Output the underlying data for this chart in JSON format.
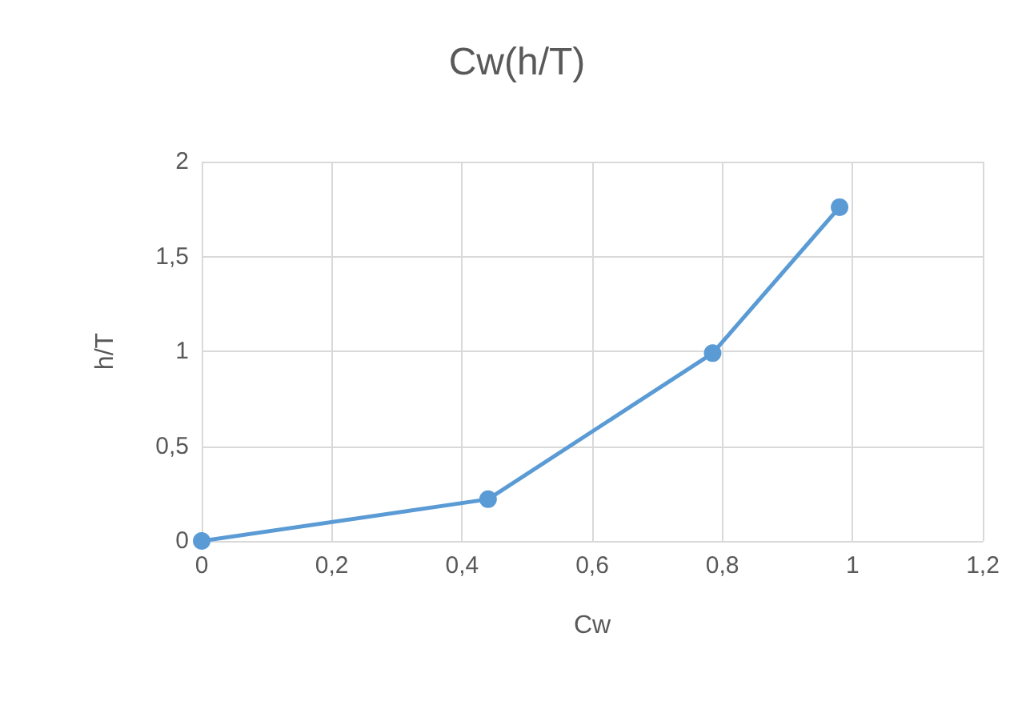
{
  "chart_data": {
    "type": "line",
    "title": "Cw(h/T)",
    "xlabel": "Cw",
    "ylabel": "h/T",
    "x": [
      0,
      0.44,
      0.785,
      0.98
    ],
    "series": [
      {
        "color": "#5b9bd5",
        "values": [
          0,
          0.22,
          0.99,
          1.76
        ]
      }
    ],
    "xlim": [
      0,
      1.2
    ],
    "xticks": [
      0,
      {
        "value": 0.2,
        "label": "0,2"
      },
      {
        "value": 0.4,
        "label": "0,4"
      },
      {
        "value": 0.6,
        "label": "0,6"
      },
      {
        "value": 0.8,
        "label": "0,8"
      },
      1,
      {
        "value": 1.2,
        "label": "1,2"
      }
    ],
    "ylim": [
      0,
      2
    ],
    "yticks": [
      0,
      {
        "value": 0.5,
        "label": "0,5"
      },
      1,
      {
        "value": 1.5,
        "label": "1,5"
      },
      2
    ],
    "grid": true,
    "marker": "circle",
    "line_style": "solid"
  }
}
